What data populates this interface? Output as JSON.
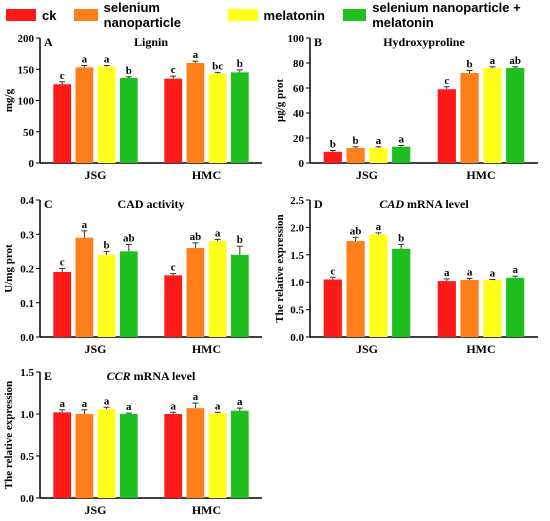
{
  "legend": [
    {
      "name": "ck",
      "color": "#ff1a1a"
    },
    {
      "name": "selenium nanoparticle",
      "color": "#ff7f1a"
    },
    {
      "name": "melatonin",
      "color": "#ffff1a"
    },
    {
      "name": "selenium nanoparticle + melatonin",
      "color": "#1fbf1f"
    }
  ],
  "chart_data": [
    {
      "type": "bar",
      "panel_letter": "A",
      "title": "Lignin",
      "title_italic": "",
      "ylabel": "mg/g",
      "categories": [
        "JSG",
        "HMC"
      ],
      "ylim": [
        0,
        200
      ],
      "yticks": [
        0,
        50,
        100,
        150,
        200
      ],
      "series": [
        {
          "name": "ck",
          "values": [
            126,
            135
          ],
          "errors": [
            4,
            4
          ],
          "letters": [
            "c",
            "c"
          ]
        },
        {
          "name": "selenium nanoparticle",
          "values": [
            153,
            160
          ],
          "errors": [
            3,
            3
          ],
          "letters": [
            "a",
            "a"
          ]
        },
        {
          "name": "melatonin",
          "values": [
            154,
            143
          ],
          "errors": [
            2,
            2
          ],
          "letters": [
            "a",
            "bc"
          ]
        },
        {
          "name": "selenium nanoparticle + melatonin",
          "values": [
            136,
            145
          ],
          "errors": [
            2,
            4
          ],
          "letters": [
            "b",
            "b"
          ]
        }
      ]
    },
    {
      "type": "bar",
      "panel_letter": "B",
      "title": "Hydroxyproline",
      "title_italic": "",
      "ylabel": "μg/g prot",
      "categories": [
        "JSG",
        "HMC"
      ],
      "ylim": [
        0,
        100
      ],
      "yticks": [
        0,
        20,
        40,
        60,
        80,
        100
      ],
      "series": [
        {
          "name": "ck",
          "values": [
            9,
            59
          ],
          "errors": [
            1,
            2
          ],
          "letters": [
            "b",
            "c"
          ]
        },
        {
          "name": "selenium nanoparticle",
          "values": [
            12,
            72
          ],
          "errors": [
            1,
            2
          ],
          "letters": [
            "b",
            "b"
          ]
        },
        {
          "name": "melatonin",
          "values": [
            12,
            76
          ],
          "errors": [
            1,
            1
          ],
          "letters": [
            "a",
            "a"
          ]
        },
        {
          "name": "selenium nanoparticle + melatonin",
          "values": [
            13,
            76
          ],
          "errors": [
            1,
            1
          ],
          "letters": [
            "a",
            "ab"
          ]
        }
      ]
    },
    {
      "type": "bar",
      "panel_letter": "C",
      "title": "CAD activity",
      "title_italic": "",
      "ylabel": "U/mg prot",
      "categories": [
        "JSG",
        "HMC"
      ],
      "ylim": [
        0,
        0.4
      ],
      "yticks": [
        0.0,
        0.1,
        0.2,
        0.3,
        0.4
      ],
      "series": [
        {
          "name": "ck",
          "values": [
            0.19,
            0.18
          ],
          "errors": [
            0.01,
            0.005
          ],
          "letters": [
            "c",
            "c"
          ]
        },
        {
          "name": "selenium nanoparticle",
          "values": [
            0.29,
            0.26
          ],
          "errors": [
            0.02,
            0.015
          ],
          "letters": [
            "a",
            "ab"
          ]
        },
        {
          "name": "melatonin",
          "values": [
            0.24,
            0.28
          ],
          "errors": [
            0.01,
            0.005
          ],
          "letters": [
            "b",
            "a"
          ]
        },
        {
          "name": "selenium nanoparticle + melatonin",
          "values": [
            0.25,
            0.24
          ],
          "errors": [
            0.02,
            0.025
          ],
          "letters": [
            "ab",
            "b"
          ]
        }
      ]
    },
    {
      "type": "bar",
      "panel_letter": "D",
      "title": " mRNA level",
      "title_italic": "CAD",
      "ylabel": "The relative expression",
      "categories": [
        "JSG",
        "HMC"
      ],
      "ylim": [
        0,
        2.5
      ],
      "yticks": [
        0.0,
        0.5,
        1.0,
        1.5,
        2.0,
        2.5
      ],
      "series": [
        {
          "name": "ck",
          "values": [
            1.05,
            1.02
          ],
          "errors": [
            0.04,
            0.04
          ],
          "letters": [
            "c",
            "a"
          ]
        },
        {
          "name": "selenium nanoparticle",
          "values": [
            1.75,
            1.04
          ],
          "errors": [
            0.07,
            0.03
          ],
          "letters": [
            "ab",
            "a"
          ]
        },
        {
          "name": "melatonin",
          "values": [
            1.87,
            1.04
          ],
          "errors": [
            0.03,
            0.01
          ],
          "letters": [
            "a",
            "a"
          ]
        },
        {
          "name": "selenium nanoparticle + melatonin",
          "values": [
            1.61,
            1.08
          ],
          "errors": [
            0.08,
            0.03
          ],
          "letters": [
            "b",
            "a"
          ]
        }
      ]
    },
    {
      "type": "bar",
      "panel_letter": "E",
      "title": " mRNA level",
      "title_italic": "CCR",
      "ylabel": "The relative expression",
      "categories": [
        "JSG",
        "HMC"
      ],
      "ylim": [
        0,
        1.5
      ],
      "yticks": [
        0.0,
        0.5,
        1.0,
        1.5
      ],
      "series": [
        {
          "name": "ck",
          "values": [
            1.02,
            1.0
          ],
          "errors": [
            0.03,
            0.02
          ],
          "letters": [
            "a",
            "a"
          ]
        },
        {
          "name": "selenium nanoparticle",
          "values": [
            1.0,
            1.07
          ],
          "errors": [
            0.05,
            0.06
          ],
          "letters": [
            "a",
            "a"
          ]
        },
        {
          "name": "melatonin",
          "values": [
            1.06,
            1.01
          ],
          "errors": [
            0.02,
            0.01
          ],
          "letters": [
            "a",
            "a"
          ]
        },
        {
          "name": "selenium nanoparticle + melatonin",
          "values": [
            1.0,
            1.04
          ],
          "errors": [
            0.01,
            0.03
          ],
          "letters": [
            "a",
            "a"
          ]
        }
      ]
    }
  ]
}
